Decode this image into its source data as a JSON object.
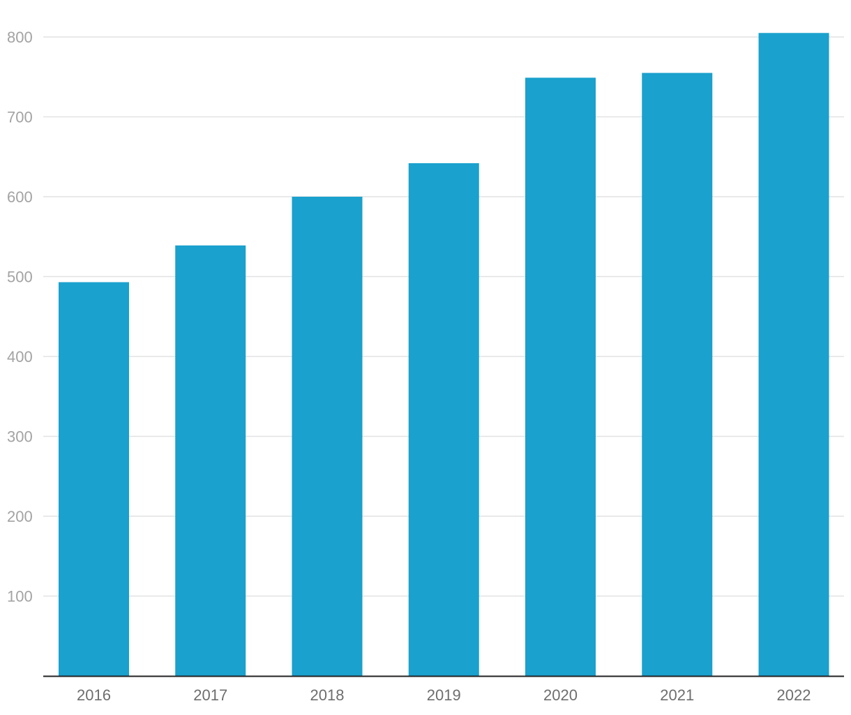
{
  "chart_data": {
    "type": "bar",
    "title": "",
    "xlabel": "",
    "ylabel": "",
    "categories": [
      "2016",
      "2017",
      "2018",
      "2019",
      "2020",
      "2021",
      "2022"
    ],
    "values": [
      493,
      539,
      600,
      642,
      749,
      755,
      805
    ],
    "ylim": [
      0,
      800
    ],
    "yticks": [
      100,
      200,
      300,
      400,
      500,
      600,
      700,
      800
    ],
    "ytick_labels": [
      "100",
      "200",
      "300",
      "400",
      "500",
      "600",
      "700",
      "800"
    ],
    "grid": true,
    "legend": "none",
    "colors": {
      "bar": "#1aa1cd",
      "grid": "#e2e2e2",
      "axis": "#222222",
      "ytick_text": "#a3a3a3",
      "xtick_text": "#6e6e6e"
    }
  }
}
